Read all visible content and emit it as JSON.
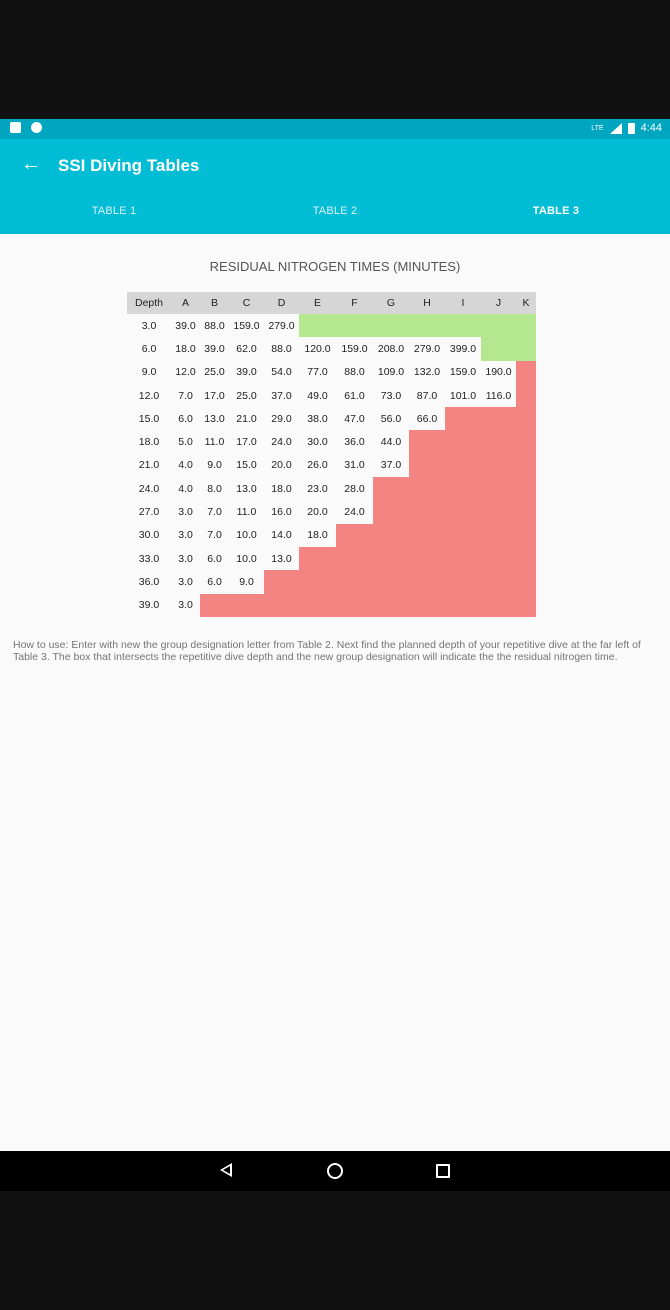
{
  "status_bar": {
    "time": "4:44",
    "network": "LTE"
  },
  "app_bar": {
    "title": "SSI Diving Tables"
  },
  "tabs": [
    {
      "label": "TABLE 1",
      "active": false
    },
    {
      "label": "TABLE 2",
      "active": false
    },
    {
      "label": "TABLE 3",
      "active": true
    }
  ],
  "table": {
    "title": "RESIDUAL NITROGEN TIMES (MINUTES)",
    "headers": [
      "Depth",
      "A",
      "B",
      "C",
      "D",
      "E",
      "F",
      "G",
      "H",
      "I",
      "J",
      "K"
    ],
    "rows": [
      {
        "depth": "3.0",
        "values": [
          "39.0",
          "88.0",
          "159.0",
          "279.0"
        ],
        "green": 7,
        "red": 0
      },
      {
        "depth": "6.0",
        "values": [
          "18.0",
          "39.0",
          "62.0",
          "88.0",
          "120.0",
          "159.0",
          "208.0",
          "279.0",
          "399.0"
        ],
        "green": 2,
        "red": 0
      },
      {
        "depth": "9.0",
        "values": [
          "12.0",
          "25.0",
          "39.0",
          "54.0",
          "77.0",
          "88.0",
          "109.0",
          "132.0",
          "159.0",
          "190.0"
        ],
        "green": 0,
        "red": 1
      },
      {
        "depth": "12.0",
        "values": [
          "7.0",
          "17.0",
          "25.0",
          "37.0",
          "49.0",
          "61.0",
          "73.0",
          "87.0",
          "101.0",
          "116.0"
        ],
        "green": 0,
        "red": 1
      },
      {
        "depth": "15.0",
        "values": [
          "6.0",
          "13.0",
          "21.0",
          "29.0",
          "38.0",
          "47.0",
          "56.0",
          "66.0"
        ],
        "green": 0,
        "red": 3
      },
      {
        "depth": "18.0",
        "values": [
          "5.0",
          "11.0",
          "17.0",
          "24.0",
          "30.0",
          "36.0",
          "44.0"
        ],
        "green": 0,
        "red": 4
      },
      {
        "depth": "21.0",
        "values": [
          "4.0",
          "9.0",
          "15.0",
          "20.0",
          "26.0",
          "31.0",
          "37.0"
        ],
        "green": 0,
        "red": 4
      },
      {
        "depth": "24.0",
        "values": [
          "4.0",
          "8.0",
          "13.0",
          "18.0",
          "23.0",
          "28.0"
        ],
        "green": 0,
        "red": 5
      },
      {
        "depth": "27.0",
        "values": [
          "3.0",
          "7.0",
          "11.0",
          "16.0",
          "20.0",
          "24.0"
        ],
        "green": 0,
        "red": 5
      },
      {
        "depth": "30.0",
        "values": [
          "3.0",
          "7.0",
          "10.0",
          "14.0",
          "18.0"
        ],
        "green": 0,
        "red": 6
      },
      {
        "depth": "33.0",
        "values": [
          "3.0",
          "6.0",
          "10.0",
          "13.0"
        ],
        "green": 0,
        "red": 7
      },
      {
        "depth": "36.0",
        "values": [
          "3.0",
          "6.0",
          "9.0"
        ],
        "green": 0,
        "red": 8
      },
      {
        "depth": "39.0",
        "values": [
          "3.0"
        ],
        "green": 0,
        "red": 10
      }
    ],
    "colors": {
      "header": "#d6d6d6",
      "green": "#b5e791",
      "red": "#f38482"
    }
  },
  "how_to": "How to use:  Enter with new the group designation letter from Table 2. Next find the planned depth of your repetitive dive at the far left of Table 3. The box that intersects the repetitive dive depth and the new group designation will indicate the the residual nitrogen time.",
  "accent_color": "#00bcd4"
}
